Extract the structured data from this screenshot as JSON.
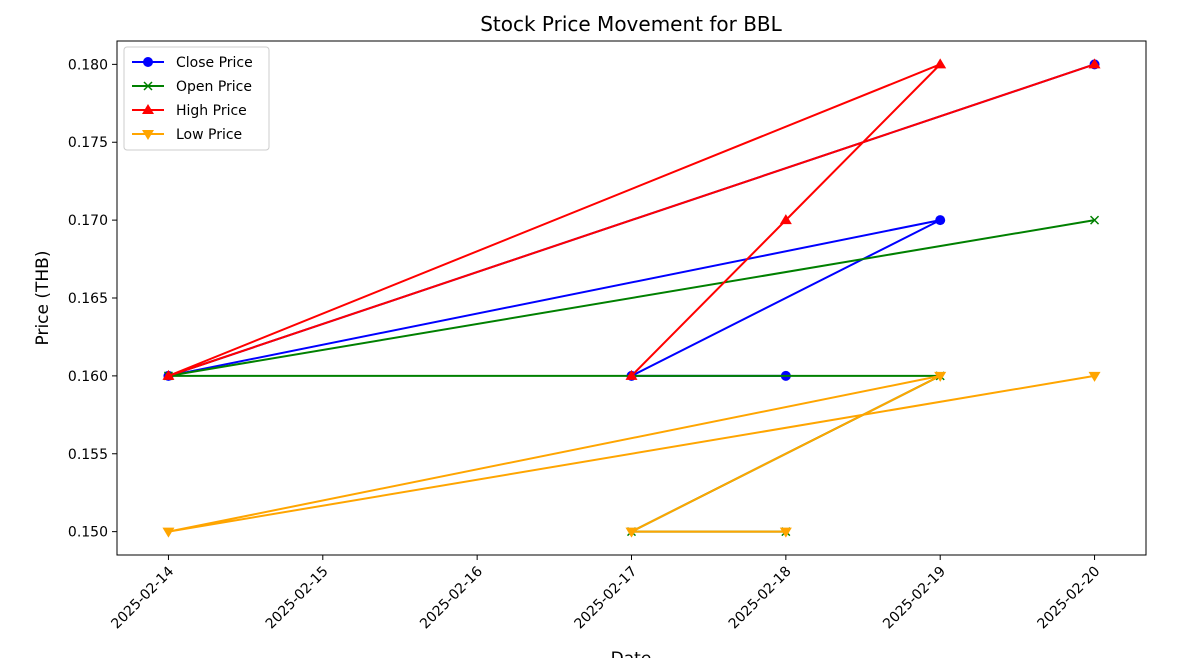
{
  "chart_data": {
    "type": "line",
    "title": "Stock Price Movement for BBL",
    "xlabel": "Date",
    "ylabel": "Price (THB)",
    "x_ticks": [
      "2025-02-14",
      "2025-02-15",
      "2025-02-16",
      "2025-02-17",
      "2025-02-18",
      "2025-02-19",
      "2025-02-20"
    ],
    "y_ticks": [
      "0.150",
      "0.155",
      "0.160",
      "0.165",
      "0.170",
      "0.175",
      "0.180"
    ],
    "xlim": [
      "2025-02-13T16:00",
      "2025-02-20T08:00"
    ],
    "ylim": [
      0.1485,
      0.1815
    ],
    "grid": false,
    "legend_position": "top-left",
    "series": [
      {
        "name": "Close Price",
        "color": "#0000ff",
        "marker": "circle",
        "x": [
          "2025-02-20",
          "2025-02-14",
          "2025-02-19",
          "2025-02-17",
          "2025-02-18"
        ],
        "y": [
          0.18,
          0.16,
          0.17,
          0.16,
          0.16
        ]
      },
      {
        "name": "Open Price",
        "color": "#008000",
        "marker": "x",
        "x": [
          "2025-02-20",
          "2025-02-14",
          "2025-02-19",
          "2025-02-17",
          "2025-02-18"
        ],
        "y": [
          0.17,
          0.16,
          0.16,
          0.15,
          0.15
        ]
      },
      {
        "name": "High Price",
        "color": "#ff0000",
        "marker": "triangle-up",
        "x": [
          "2025-02-20",
          "2025-02-14",
          "2025-02-19",
          "2025-02-18",
          "2025-02-17"
        ],
        "y": [
          0.18,
          0.16,
          0.18,
          0.17,
          0.16
        ]
      },
      {
        "name": "Low Price",
        "color": "#ffa500",
        "marker": "triangle-down",
        "x": [
          "2025-02-20",
          "2025-02-14",
          "2025-02-19",
          "2025-02-17",
          "2025-02-18"
        ],
        "y": [
          0.16,
          0.15,
          0.16,
          0.15,
          0.15
        ]
      }
    ]
  }
}
